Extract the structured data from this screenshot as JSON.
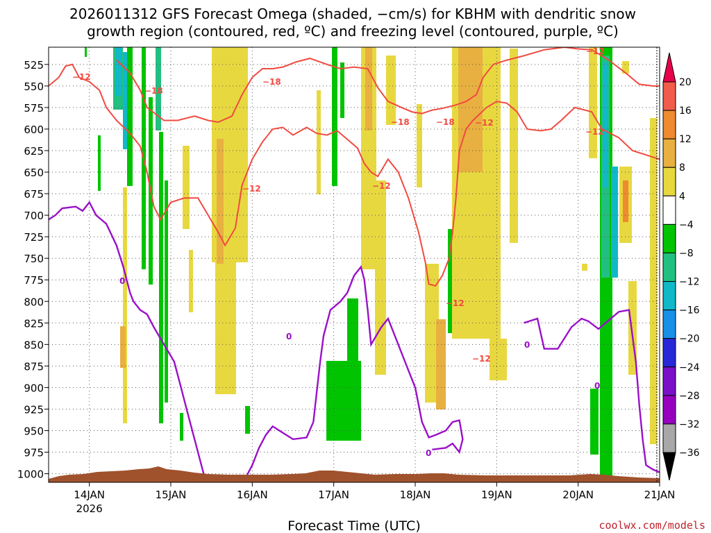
{
  "chart_data": {
    "type": "heatmap",
    "title_line1": "2026011312 GFS Forecast Omega (shaded, −cm/s) for KBHM with dendritic snow",
    "title_line2": "growth region (contoured, red, ºC) and freezing level (contoured, purple, ºC)",
    "xlabel": "Forecast Time (UTC)",
    "x_ticks": [
      {
        "label": "14JAN",
        "sub": "2026",
        "hours": 12
      },
      {
        "label": "15JAN",
        "sub": "",
        "hours": 36
      },
      {
        "label": "16JAN",
        "sub": "",
        "hours": 60
      },
      {
        "label": "17JAN",
        "sub": "",
        "hours": 84
      },
      {
        "label": "18JAN",
        "sub": "",
        "hours": 108
      },
      {
        "label": "19JAN",
        "sub": "",
        "hours": 132
      },
      {
        "label": "20JAN",
        "sub": "",
        "hours": 156
      },
      {
        "label": "21JAN",
        "sub": "",
        "hours": 180
      }
    ],
    "x_range_hours": [
      0,
      180
    ],
    "y_ticks": [
      "525",
      "550",
      "575",
      "600",
      "625",
      "650",
      "675",
      "700",
      "725",
      "750",
      "775",
      "800",
      "825",
      "850",
      "875",
      "900",
      "925",
      "950",
      "975",
      "1000"
    ],
    "y_range_hpa": [
      505,
      1010
    ],
    "colorbar": {
      "labels": [
        "20",
        "16",
        "12",
        "8",
        "4",
        "−4",
        "−8",
        "−12",
        "−16",
        "−20",
        "−24",
        "−28",
        "−32",
        "−36"
      ],
      "colors": [
        "#e8004a",
        "#f25c4a",
        "#ee8a30",
        "#e8b040",
        "#e8d840",
        "#ffffff",
        "#00c400",
        "#22c080",
        "#10b8c8",
        "#1890e8",
        "#2828d8",
        "#7a10c8",
        "#9800c0",
        "#a8a8a8"
      ]
    },
    "contour_labels": {
      "dgz_upper": "−18",
      "dgz_lower": "−12",
      "freezing": "0"
    },
    "dgz_lower_contour": [
      [
        0,
        550
      ],
      [
        3,
        540
      ],
      [
        5,
        527
      ],
      [
        7,
        525
      ],
      [
        9,
        540
      ],
      [
        12,
        545
      ],
      [
        15,
        555
      ],
      [
        17,
        575
      ],
      [
        20,
        590
      ],
      [
        24,
        605
      ],
      [
        27,
        620
      ],
      [
        29,
        650
      ],
      [
        31,
        690
      ],
      [
        33,
        705
      ],
      [
        36,
        685
      ],
      [
        40,
        680
      ],
      [
        44,
        680
      ],
      [
        47,
        700
      ],
      [
        50,
        720
      ],
      [
        52,
        735
      ],
      [
        55,
        715
      ],
      [
        57,
        665
      ],
      [
        60,
        635
      ],
      [
        63,
        615
      ],
      [
        66,
        600
      ],
      [
        69,
        598
      ],
      [
        72,
        607
      ],
      [
        76,
        598
      ],
      [
        79,
        605
      ],
      [
        82,
        607
      ],
      [
        85,
        602
      ],
      [
        88,
        612
      ],
      [
        91,
        622
      ],
      [
        93,
        640
      ],
      [
        95,
        650
      ],
      [
        97,
        655
      ],
      [
        100,
        635
      ],
      [
        103,
        650
      ],
      [
        106,
        680
      ],
      [
        109,
        720
      ],
      [
        111,
        755
      ],
      [
        112,
        780
      ],
      [
        114,
        782
      ],
      [
        116,
        770
      ],
      [
        118,
        750
      ],
      [
        119,
        720
      ],
      [
        120,
        680
      ],
      [
        121,
        625
      ],
      [
        123,
        600
      ],
      [
        125,
        590
      ],
      [
        129,
        575
      ],
      [
        132,
        568
      ],
      [
        135,
        570
      ],
      [
        138,
        580
      ],
      [
        141,
        600
      ],
      [
        145,
        602
      ],
      [
        148,
        600
      ],
      [
        151,
        590
      ],
      [
        155,
        575
      ],
      [
        160,
        580
      ],
      [
        163,
        600
      ],
      [
        168,
        610
      ],
      [
        172,
        625
      ],
      [
        176,
        630
      ],
      [
        180,
        635
      ]
    ],
    "dgz_upper_contour": [
      [
        20,
        520
      ],
      [
        24,
        535
      ],
      [
        27,
        555
      ],
      [
        29,
        575
      ],
      [
        34,
        590
      ],
      [
        38,
        590
      ],
      [
        43,
        585
      ],
      [
        47,
        590
      ],
      [
        50,
        592
      ],
      [
        54,
        585
      ],
      [
        57,
        560
      ],
      [
        60,
        540
      ],
      [
        63,
        530
      ],
      [
        66,
        530
      ],
      [
        69,
        528
      ],
      [
        73,
        522
      ],
      [
        77,
        518
      ],
      [
        82,
        525
      ],
      [
        86,
        530
      ],
      [
        90,
        528
      ],
      [
        94,
        530
      ],
      [
        97,
        552
      ],
      [
        100,
        568
      ],
      [
        104,
        575
      ],
      [
        107,
        580
      ],
      [
        110,
        582
      ],
      [
        113,
        578
      ],
      [
        116,
        576
      ],
      [
        120,
        572
      ],
      [
        123,
        568
      ],
      [
        126,
        560
      ],
      [
        128,
        540
      ],
      [
        131,
        525
      ],
      [
        135,
        520
      ],
      [
        140,
        515
      ],
      [
        146,
        508
      ],
      [
        152,
        505
      ],
      [
        156,
        507
      ],
      [
        160,
        508
      ],
      [
        165,
        520
      ],
      [
        170,
        535
      ],
      [
        174,
        548
      ],
      [
        178,
        550
      ],
      [
        180,
        550
      ]
    ],
    "freezing_contour": [
      [
        0,
        705
      ],
      [
        2,
        700
      ],
      [
        4,
        692
      ],
      [
        8,
        690
      ],
      [
        10,
        695
      ],
      [
        12,
        685
      ],
      [
        14,
        700
      ],
      [
        17,
        710
      ],
      [
        20,
        735
      ],
      [
        22,
        760
      ],
      [
        24,
        790
      ],
      [
        25,
        800
      ],
      [
        27,
        810
      ],
      [
        29,
        815
      ],
      [
        31,
        830
      ],
      [
        34,
        850
      ],
      [
        37,
        870
      ],
      [
        39,
        900
      ],
      [
        41,
        930
      ],
      [
        44,
        975
      ],
      [
        46,
        1005
      ]
    ],
    "freezing_contour_b": [
      [
        58,
        1005
      ],
      [
        60,
        990
      ],
      [
        62,
        970
      ],
      [
        64,
        955
      ],
      [
        66,
        945
      ],
      [
        68,
        950
      ],
      [
        72,
        960
      ],
      [
        76,
        958
      ],
      [
        78,
        940
      ],
      [
        79,
        905
      ],
      [
        80,
        870
      ],
      [
        81,
        840
      ],
      [
        83,
        810
      ],
      [
        86,
        800
      ],
      [
        88,
        790
      ],
      [
        90,
        770
      ],
      [
        92,
        760
      ],
      [
        93,
        775
      ],
      [
        94,
        810
      ],
      [
        95,
        850
      ],
      [
        98,
        830
      ],
      [
        100,
        820
      ],
      [
        102,
        840
      ],
      [
        105,
        870
      ],
      [
        108,
        900
      ],
      [
        110,
        940
      ],
      [
        112,
        958
      ],
      [
        114,
        955
      ],
      [
        117,
        950
      ],
      [
        119,
        940
      ],
      [
        121,
        938
      ],
      [
        122,
        960
      ],
      [
        121,
        975
      ],
      [
        119,
        965
      ],
      [
        117,
        970
      ],
      [
        113,
        972
      ]
    ],
    "freezing_contour_c": [
      [
        140,
        825
      ],
      [
        144,
        820
      ],
      [
        146,
        855
      ],
      [
        150,
        855
      ],
      [
        154,
        830
      ],
      [
        157,
        820
      ],
      [
        159,
        823
      ],
      [
        162,
        832
      ],
      [
        165,
        822
      ],
      [
        168,
        812
      ],
      [
        171,
        810
      ],
      [
        172,
        840
      ],
      [
        173,
        870
      ],
      [
        174,
        920
      ],
      [
        175,
        960
      ],
      [
        176,
        990
      ],
      [
        178,
        995
      ],
      [
        181,
        1000
      ]
    ]
  }
}
